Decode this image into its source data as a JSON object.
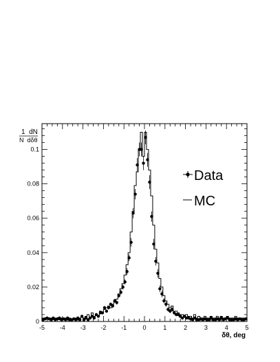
{
  "chart_data": {
    "type": "scatter",
    "xlabel": "δθ, deg",
    "ylabel_numerator": "1  dN",
    "ylabel_denominator": "N  dδθ",
    "xlim": [
      -5,
      5
    ],
    "ylim": [
      0,
      0.115
    ],
    "xticks": [
      -5,
      -4,
      -3,
      -2,
      -1,
      0,
      1,
      2,
      3,
      4,
      5
    ],
    "yticks": [
      0,
      0.02,
      0.04,
      0.06,
      0.08,
      0.1
    ],
    "ytick_labels": [
      "0",
      "0.02",
      "0.04",
      "0.06",
      "0.08",
      "0.1"
    ],
    "legend_placement": "right",
    "grid": false,
    "series": [
      {
        "name": "Data",
        "style": "points-with-errorbars",
        "x": [
          -4.95,
          -4.85,
          -4.75,
          -4.65,
          -4.55,
          -4.45,
          -4.35,
          -4.25,
          -4.15,
          -4.05,
          -3.95,
          -3.85,
          -3.75,
          -3.65,
          -3.55,
          -3.45,
          -3.35,
          -3.25,
          -3.15,
          -3.05,
          -2.95,
          -2.85,
          -2.75,
          -2.65,
          -2.55,
          -2.45,
          -2.35,
          -2.25,
          -2.15,
          -2.05,
          -1.95,
          -1.85,
          -1.75,
          -1.65,
          -1.55,
          -1.45,
          -1.35,
          -1.25,
          -1.15,
          -1.05,
          -0.95,
          -0.85,
          -0.75,
          -0.65,
          -0.55,
          -0.45,
          -0.35,
          -0.25,
          -0.15,
          -0.05,
          0.05,
          0.15,
          0.25,
          0.35,
          0.45,
          0.55,
          0.65,
          0.75,
          0.85,
          0.95,
          1.05,
          1.15,
          1.25,
          1.35,
          1.45,
          1.55,
          1.65,
          1.75,
          1.85,
          1.95,
          2.05,
          2.15,
          2.25,
          2.35,
          2.45,
          2.55,
          2.65,
          2.75,
          2.85,
          2.95,
          3.05,
          3.15,
          3.25,
          3.35,
          3.45,
          3.55,
          3.65,
          3.75,
          3.85,
          3.95,
          4.05,
          4.15,
          4.25,
          4.35,
          4.45,
          4.55,
          4.65,
          4.75,
          4.85,
          4.95
        ],
        "y": [
          0.001,
          0.0015,
          0.002,
          0.0015,
          0.001,
          0.002,
          0.001,
          0.0015,
          0.002,
          0.001,
          0.0015,
          0.001,
          0.002,
          0.001,
          0.001,
          0.0015,
          0.001,
          0.002,
          0.001,
          0.003,
          0.001,
          0.002,
          0.001,
          0.002,
          0.003,
          0.002,
          0.004,
          0.003,
          0.005,
          0.005,
          0.008,
          0.006,
          0.008,
          0.01,
          0.009,
          0.012,
          0.011,
          0.015,
          0.017,
          0.02,
          0.023,
          0.029,
          0.037,
          0.046,
          0.063,
          0.074,
          0.091,
          0.1,
          0.1,
          0.092,
          0.107,
          0.094,
          0.081,
          0.061,
          0.045,
          0.035,
          0.028,
          0.019,
          0.016,
          0.012,
          0.01,
          0.007,
          0.006,
          0.007,
          0.005,
          0.004,
          0.004,
          0.003,
          0.002,
          0.003,
          0.002,
          0.002,
          0.0015,
          0.001,
          0.002,
          0.001,
          0.001,
          0.0015,
          0.001,
          0.0015,
          0.001,
          0.001,
          0.002,
          0.001,
          0.001,
          0.0015,
          0.001,
          0.002,
          0.001,
          0.0015,
          0.002,
          0.001,
          0.001,
          0.001,
          0.0015,
          0.001,
          0.0015,
          0.001,
          0.001,
          0.0015
        ],
        "yerr": [
          0.0008,
          0.0008,
          0.0008,
          0.0008,
          0.0008,
          0.0008,
          0.0008,
          0.0008,
          0.0008,
          0.0008,
          0.0008,
          0.0008,
          0.0008,
          0.0008,
          0.0008,
          0.0008,
          0.0008,
          0.0008,
          0.0008,
          0.0008,
          0.0008,
          0.0008,
          0.0008,
          0.0008,
          0.0008,
          0.0008,
          0.0008,
          0.0008,
          0.0008,
          0.0008,
          0.001,
          0.001,
          0.001,
          0.001,
          0.001,
          0.0012,
          0.0012,
          0.0012,
          0.0015,
          0.0015,
          0.0015,
          0.002,
          0.002,
          0.0025,
          0.003,
          0.003,
          0.004,
          0.004,
          0.004,
          0.004,
          0.004,
          0.004,
          0.004,
          0.003,
          0.003,
          0.0025,
          0.0025,
          0.002,
          0.002,
          0.0015,
          0.0015,
          0.0012,
          0.0012,
          0.0012,
          0.001,
          0.001,
          0.001,
          0.001,
          0.0008,
          0.0008,
          0.0008,
          0.0008,
          0.0008,
          0.0008,
          0.0008,
          0.0008,
          0.0008,
          0.0008,
          0.0008,
          0.0008,
          0.0008,
          0.0008,
          0.0008,
          0.0008,
          0.0008,
          0.0008,
          0.0008,
          0.0008,
          0.0008,
          0.0008,
          0.0008,
          0.0008,
          0.0008,
          0.0008,
          0.0008,
          0.0008,
          0.0008,
          0.0008,
          0.0008,
          0.0008
        ]
      },
      {
        "name": "MC",
        "style": "step-histogram",
        "bin_low": [
          -5.0,
          -4.9,
          -4.8,
          -4.7,
          -4.6,
          -4.5,
          -4.4,
          -4.3,
          -4.2,
          -4.1,
          -4.0,
          -3.9,
          -3.8,
          -3.7,
          -3.6,
          -3.5,
          -3.4,
          -3.3,
          -3.2,
          -3.1,
          -3.0,
          -2.9,
          -2.8,
          -2.7,
          -2.6,
          -2.5,
          -2.4,
          -2.3,
          -2.2,
          -2.1,
          -2.0,
          -1.9,
          -1.8,
          -1.7,
          -1.6,
          -1.5,
          -1.4,
          -1.3,
          -1.2,
          -1.1,
          -1.0,
          -0.9,
          -0.8,
          -0.7,
          -0.6,
          -0.5,
          -0.4,
          -0.3,
          -0.2,
          -0.1,
          0.0,
          0.1,
          0.2,
          0.3,
          0.4,
          0.5,
          0.6,
          0.7,
          0.8,
          0.9,
          1.0,
          1.1,
          1.2,
          1.3,
          1.4,
          1.5,
          1.6,
          1.7,
          1.8,
          1.9,
          2.0,
          2.1,
          2.2,
          2.3,
          2.4,
          2.5,
          2.6,
          2.7,
          2.8,
          2.9,
          3.0,
          3.1,
          3.2,
          3.3,
          3.4,
          3.5,
          3.6,
          3.7,
          3.8,
          3.9,
          4.0,
          4.1,
          4.2,
          4.3,
          4.4,
          4.5,
          4.6,
          4.7,
          4.8,
          4.9
        ],
        "values": [
          0.002,
          0.001,
          0.002,
          0.001,
          0.002,
          0.001,
          0.002,
          0.002,
          0.001,
          0.002,
          0.001,
          0.002,
          0.001,
          0.002,
          0.001,
          0.001,
          0.002,
          0.001,
          0.002,
          0.003,
          0.002,
          0.003,
          0.004,
          0.002,
          0.005,
          0.003,
          0.004,
          0.003,
          0.006,
          0.005,
          0.007,
          0.008,
          0.009,
          0.008,
          0.01,
          0.012,
          0.013,
          0.016,
          0.019,
          0.022,
          0.027,
          0.033,
          0.04,
          0.052,
          0.064,
          0.079,
          0.087,
          0.1,
          0.11,
          0.096,
          0.11,
          0.1,
          0.088,
          0.073,
          0.056,
          0.042,
          0.034,
          0.025,
          0.02,
          0.015,
          0.012,
          0.01,
          0.008,
          0.009,
          0.006,
          0.006,
          0.005,
          0.004,
          0.004,
          0.003,
          0.004,
          0.003,
          0.003,
          0.002,
          0.004,
          0.002,
          0.003,
          0.002,
          0.002,
          0.003,
          0.002,
          0.002,
          0.003,
          0.002,
          0.002,
          0.003,
          0.002,
          0.003,
          0.002,
          0.002,
          0.003,
          0.002,
          0.002,
          0.002,
          0.003,
          0.002,
          0.002,
          0.002,
          0.002,
          0.002
        ],
        "bin_width": 0.1
      }
    ]
  }
}
